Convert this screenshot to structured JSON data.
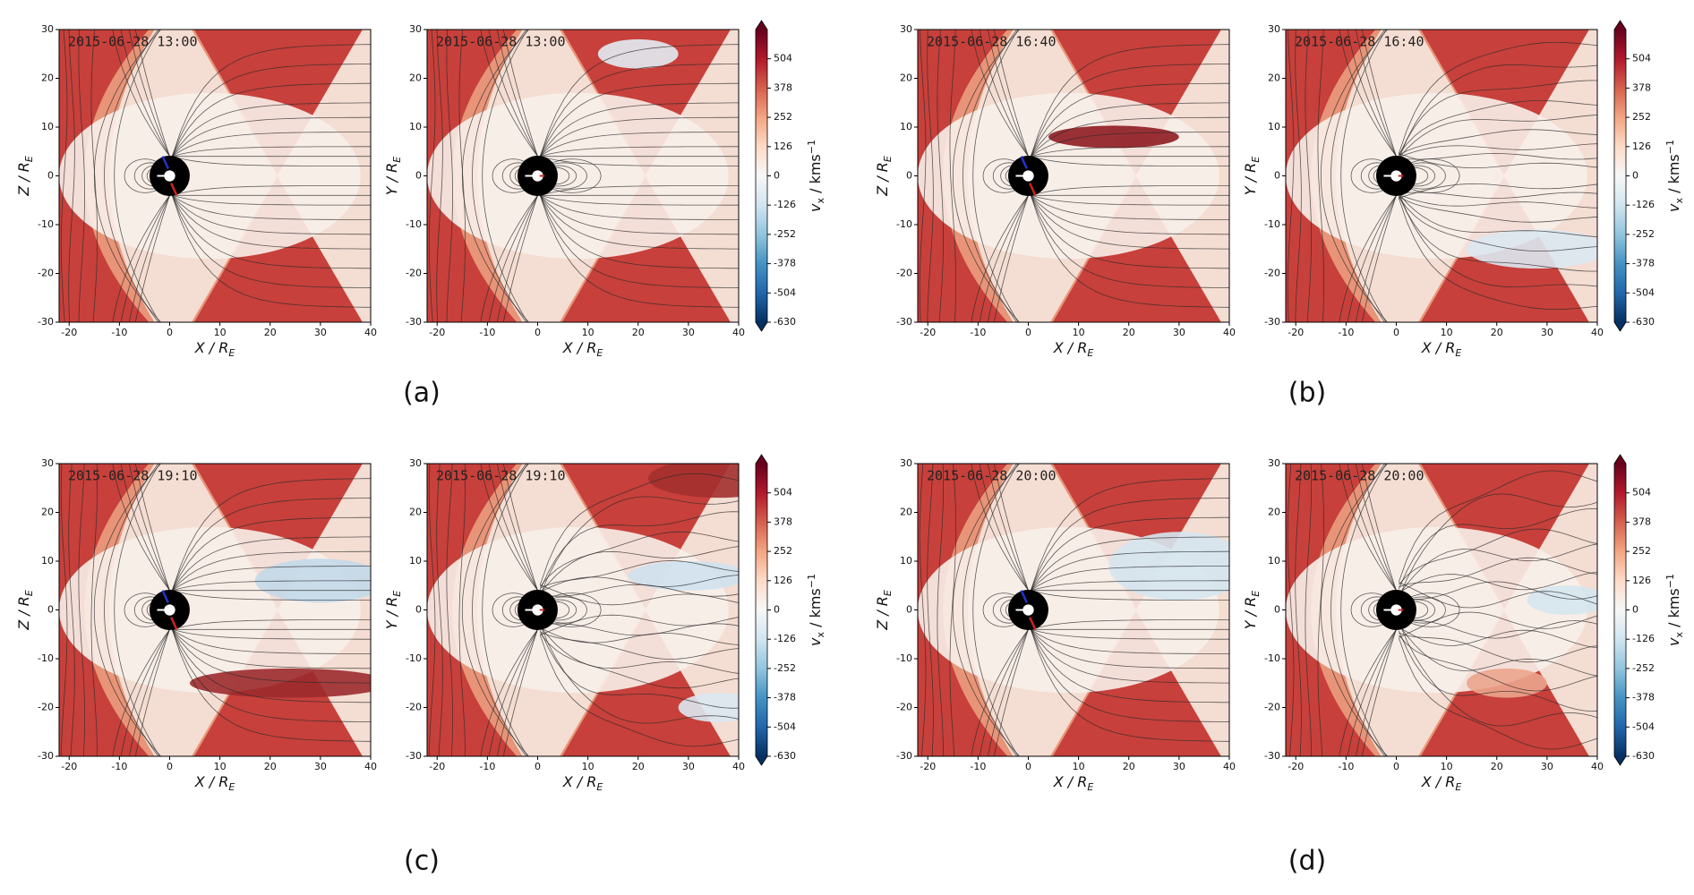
{
  "chart_data": [
    {
      "type": "heatmap",
      "caption": "(a)",
      "panels": [
        {
          "title": "2015-06-28 13:00",
          "xlabel": [
            "X / R",
            "E"
          ],
          "ylabel": [
            "Z / R",
            "E"
          ],
          "xlim": [
            -22,
            40
          ],
          "ylim": [
            -30,
            30
          ],
          "xticks": [
            -20,
            -10,
            0,
            10,
            20,
            30,
            40
          ],
          "yticks": [
            -30,
            -20,
            -10,
            0,
            10,
            20,
            30
          ]
        },
        {
          "title": "2015-06-28 13:00",
          "xlabel": [
            "X / R",
            "E"
          ],
          "ylabel": [
            "Y / R",
            "E"
          ],
          "xlim": [
            -22,
            40
          ],
          "ylim": [
            -30,
            30
          ],
          "xticks": [
            -20,
            -10,
            0,
            10,
            20,
            30,
            40
          ],
          "yticks": [
            -30,
            -20,
            -10,
            0,
            10,
            20,
            30
          ]
        }
      ],
      "colorbar": {
        "label": [
          "v",
          "x",
          " / kms",
          "−1"
        ],
        "lim": [
          -630,
          630
        ],
        "ticks": [
          -630,
          -504,
          -378,
          -252,
          -126,
          0,
          126,
          252,
          378,
          504
        ],
        "colors": [
          "#053061",
          "#2166ac",
          "#4393c3",
          "#92c5de",
          "#d1e5f0",
          "#f7f7f7",
          "#fddbc7",
          "#f4a582",
          "#d6604d",
          "#b2182b",
          "#67001f"
        ]
      }
    },
    {
      "type": "heatmap",
      "caption": "(b)",
      "panels": [
        {
          "title": "2015-06-28 16:40",
          "xlabel": [
            "X / R",
            "E"
          ],
          "ylabel": [
            "Z / R",
            "E"
          ],
          "xlim": [
            -22,
            40
          ],
          "ylim": [
            -30,
            30
          ],
          "xticks": [
            -20,
            -10,
            0,
            10,
            20,
            30,
            40
          ],
          "yticks": [
            -30,
            -20,
            -10,
            0,
            10,
            20,
            30
          ]
        },
        {
          "title": "2015-06-28 16:40",
          "xlabel": [
            "X / R",
            "E"
          ],
          "ylabel": [
            "Y / R",
            "E"
          ],
          "xlim": [
            -22,
            40
          ],
          "ylim": [
            -30,
            30
          ],
          "xticks": [
            -20,
            -10,
            0,
            10,
            20,
            30,
            40
          ],
          "yticks": [
            -30,
            -20,
            -10,
            0,
            10,
            20,
            30
          ]
        }
      ],
      "colorbar": {
        "label": [
          "v",
          "x",
          " / kms",
          "−1"
        ],
        "lim": [
          -630,
          630
        ],
        "ticks": [
          -630,
          -504,
          -378,
          -252,
          -126,
          0,
          126,
          252,
          378,
          504
        ],
        "colors": [
          "#053061",
          "#2166ac",
          "#4393c3",
          "#92c5de",
          "#d1e5f0",
          "#f7f7f7",
          "#fddbc7",
          "#f4a582",
          "#d6604d",
          "#b2182b",
          "#67001f"
        ]
      }
    },
    {
      "type": "heatmap",
      "caption": "(c)",
      "panels": [
        {
          "title": "2015-06-28 19:10",
          "xlabel": [
            "X / R",
            "E"
          ],
          "ylabel": [
            "Z / R",
            "E"
          ],
          "xlim": [
            -22,
            40
          ],
          "ylim": [
            -30,
            30
          ],
          "xticks": [
            -20,
            -10,
            0,
            10,
            20,
            30,
            40
          ],
          "yticks": [
            -30,
            -20,
            -10,
            0,
            10,
            20,
            30
          ]
        },
        {
          "title": "2015-06-28 19:10",
          "xlabel": [
            "X / R",
            "E"
          ],
          "ylabel": [
            "Y / R",
            "E"
          ],
          "xlim": [
            -22,
            40
          ],
          "ylim": [
            -30,
            30
          ],
          "xticks": [
            -20,
            -10,
            0,
            10,
            20,
            30,
            40
          ],
          "yticks": [
            -30,
            -20,
            -10,
            0,
            10,
            20,
            30
          ]
        }
      ],
      "colorbar": {
        "label": [
          "v",
          "x",
          " / kms",
          "−1"
        ],
        "lim": [
          -630,
          630
        ],
        "ticks": [
          -630,
          -504,
          -378,
          -252,
          -126,
          0,
          126,
          252,
          378,
          504
        ],
        "colors": [
          "#053061",
          "#2166ac",
          "#4393c3",
          "#92c5de",
          "#d1e5f0",
          "#f7f7f7",
          "#fddbc7",
          "#f4a582",
          "#d6604d",
          "#b2182b",
          "#67001f"
        ]
      }
    },
    {
      "type": "heatmap",
      "caption": "(d)",
      "panels": [
        {
          "title": "2015-06-28 20:00",
          "xlabel": [
            "X / R",
            "E"
          ],
          "ylabel": [
            "Z / R",
            "E"
          ],
          "xlim": [
            -22,
            40
          ],
          "ylim": [
            -30,
            30
          ],
          "xticks": [
            -20,
            -10,
            0,
            10,
            20,
            30,
            40
          ],
          "yticks": [
            -30,
            -20,
            -10,
            0,
            10,
            20,
            30
          ]
        },
        {
          "title": "2015-06-28 20:00",
          "xlabel": [
            "X / R",
            "E"
          ],
          "ylabel": [
            "Y / R",
            "E"
          ],
          "xlim": [
            -22,
            40
          ],
          "ylim": [
            -30,
            30
          ],
          "xticks": [
            -20,
            -10,
            0,
            10,
            20,
            30,
            40
          ],
          "yticks": [
            -30,
            -20,
            -10,
            0,
            10,
            20,
            30
          ]
        }
      ],
      "colorbar": {
        "label": [
          "v",
          "x",
          " / kms",
          "−1"
        ],
        "lim": [
          -630,
          630
        ],
        "ticks": [
          -630,
          -504,
          -378,
          -252,
          -126,
          0,
          126,
          252,
          378,
          504
        ],
        "colors": [
          "#053061",
          "#2166ac",
          "#4393c3",
          "#92c5de",
          "#d1e5f0",
          "#f7f7f7",
          "#fddbc7",
          "#f4a582",
          "#d6604d",
          "#b2182b",
          "#67001f"
        ]
      }
    }
  ]
}
